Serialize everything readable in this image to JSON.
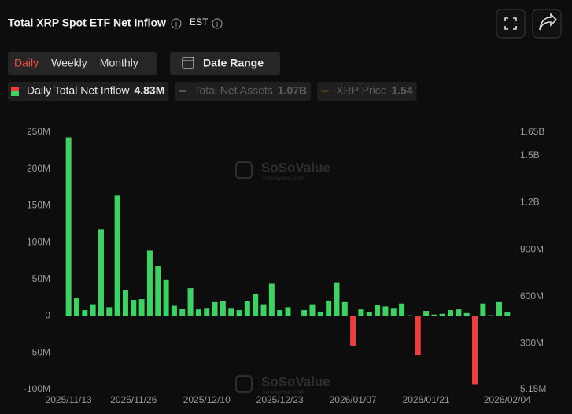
{
  "chart_data": {
    "type": "bar",
    "title": "Total XRP Spot ETF Net Inflow",
    "timezone": "EST",
    "tabs": [
      "Daily",
      "Weekly",
      "Monthly"
    ],
    "active_tab": 0,
    "date_range": "Date Range",
    "legend": [
      {
        "name": "Daily Total Net Inflow",
        "value": "4.83M",
        "active": true
      },
      {
        "name": "Total Net Assets",
        "value": "1.07B",
        "active": false
      },
      {
        "name": "XRP Price",
        "value": "1.54",
        "active": false
      }
    ],
    "watermark": {
      "name": "SoSoValue",
      "url": "sosovalue.com"
    },
    "categories": [
      "2025/11/13",
      null,
      null,
      null,
      null,
      null,
      null,
      null,
      "2025/11/26",
      null,
      null,
      null,
      null,
      null,
      null,
      null,
      null,
      "2025/12/10",
      null,
      null,
      null,
      null,
      null,
      null,
      null,
      null,
      "2025/12/23",
      null,
      null,
      null,
      null,
      null,
      null,
      null,
      null,
      "2026/01/07",
      null,
      null,
      null,
      null,
      null,
      null,
      null,
      null,
      "2026/01/21",
      null,
      null,
      null,
      null,
      null,
      null,
      null,
      null,
      null,
      "2026/02/04"
    ],
    "series": [
      {
        "name": "Daily Total Net Inflow",
        "color": "#3dd363",
        "negative_color": "#f03c3c",
        "values": [
          243000000,
          25000000,
          8000000,
          16000000,
          118000000,
          12000000,
          164000000,
          35000000,
          22000000,
          23000000,
          89000000,
          68000000,
          49000000,
          14000000,
          10000000,
          38000000,
          9000000,
          11000000,
          19000000,
          20000000,
          11000000,
          8000000,
          20000000,
          30000000,
          16000000,
          44000000,
          8000000,
          12000000,
          0,
          8000000,
          16000000,
          6000000,
          21000000,
          46000000,
          19000000,
          -40000000,
          9000000,
          5000000,
          15000000,
          13000000,
          11000000,
          17000000,
          1000000,
          -53000000,
          7000000,
          2000000,
          3000000,
          8000000,
          9000000,
          4000000,
          -93000000,
          17000000,
          1000000,
          19000000,
          4830000
        ]
      }
    ],
    "ylim": [
      -100000000,
      250000000
    ],
    "yticks": [
      {
        "value": -100000000,
        "label": "-100M"
      },
      {
        "value": -50000000,
        "label": "-50M"
      },
      0,
      {
        "value": 50000000,
        "label": "50M"
      },
      {
        "value": 100000000,
        "label": "100M"
      },
      {
        "value": 150000000,
        "label": "150M"
      },
      {
        "value": 200000000,
        "label": "200M"
      },
      {
        "value": 250000000,
        "label": "250M"
      }
    ],
    "y2lim": [
      5150000,
      1650000000
    ],
    "y2ticks": [
      {
        "value": 5150000,
        "label": "5.15M"
      },
      {
        "value": 300000000,
        "label": "300M"
      },
      {
        "value": 600000000,
        "label": "600M"
      },
      {
        "value": 900000000,
        "label": "900M"
      },
      {
        "value": 1200000000,
        "label": "1.2B"
      },
      {
        "value": 1500000000,
        "label": "1.5B"
      },
      {
        "value": 1650000000,
        "label": "1.65B"
      }
    ]
  }
}
